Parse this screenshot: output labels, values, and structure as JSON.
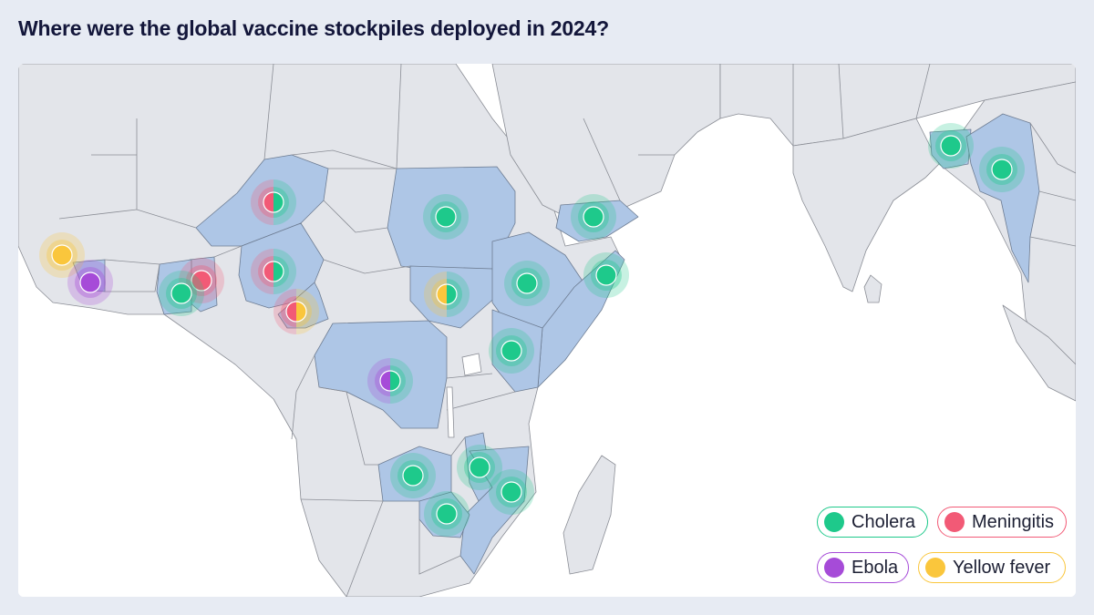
{
  "title": "Where were the global vaccine stockpiles deployed in 2024?",
  "colors": {
    "Cholera": "#1ec98b",
    "Meningitis": "#f25a76",
    "Ebola": "#a64bd8",
    "Yellow fever": "#fac63c",
    "highlight": "#aec6e6",
    "land": "#e3e5ea",
    "ocean": "#ffffff"
  },
  "legend": [
    {
      "label": "Cholera",
      "color": "#1ec98b"
    },
    {
      "label": "Meningitis",
      "color": "#f25a76"
    },
    {
      "label": "Ebola",
      "color": "#a64bd8"
    },
    {
      "label": "Yellow fever",
      "color": "#fac63c"
    }
  ],
  "deployments": [
    {
      "id": "niger",
      "diseases": [
        "Meningitis",
        "Cholera"
      ]
    },
    {
      "id": "nigeria",
      "diseases": [
        "Meningitis",
        "Cholera"
      ]
    },
    {
      "id": "cameroon",
      "diseases": [
        "Meningitis",
        "Yellow fever"
      ]
    },
    {
      "id": "ghana",
      "diseases": [
        "Meningitis"
      ]
    },
    {
      "id": "cote-divoire",
      "diseases": [
        "Cholera"
      ]
    },
    {
      "id": "guinea",
      "diseases": [
        "Yellow fever"
      ]
    },
    {
      "id": "sierra-leone",
      "diseases": [
        "Ebola"
      ]
    },
    {
      "id": "sudan",
      "diseases": [
        "Cholera"
      ]
    },
    {
      "id": "south-sudan",
      "diseases": [
        "Yellow fever",
        "Cholera"
      ]
    },
    {
      "id": "ethiopia",
      "diseases": [
        "Cholera"
      ]
    },
    {
      "id": "yemen",
      "diseases": [
        "Cholera"
      ]
    },
    {
      "id": "somalia",
      "diseases": [
        "Cholera"
      ]
    },
    {
      "id": "kenya",
      "diseases": [
        "Cholera"
      ]
    },
    {
      "id": "drc",
      "diseases": [
        "Ebola",
        "Cholera"
      ]
    },
    {
      "id": "zambia",
      "diseases": [
        "Cholera"
      ]
    },
    {
      "id": "malawi",
      "diseases": [
        "Cholera"
      ]
    },
    {
      "id": "mozambique",
      "diseases": [
        "Cholera"
      ]
    },
    {
      "id": "zimbabwe",
      "diseases": [
        "Cholera"
      ]
    },
    {
      "id": "bangladesh",
      "diseases": [
        "Cholera"
      ]
    },
    {
      "id": "myanmar",
      "diseases": [
        "Cholera"
      ]
    }
  ]
}
